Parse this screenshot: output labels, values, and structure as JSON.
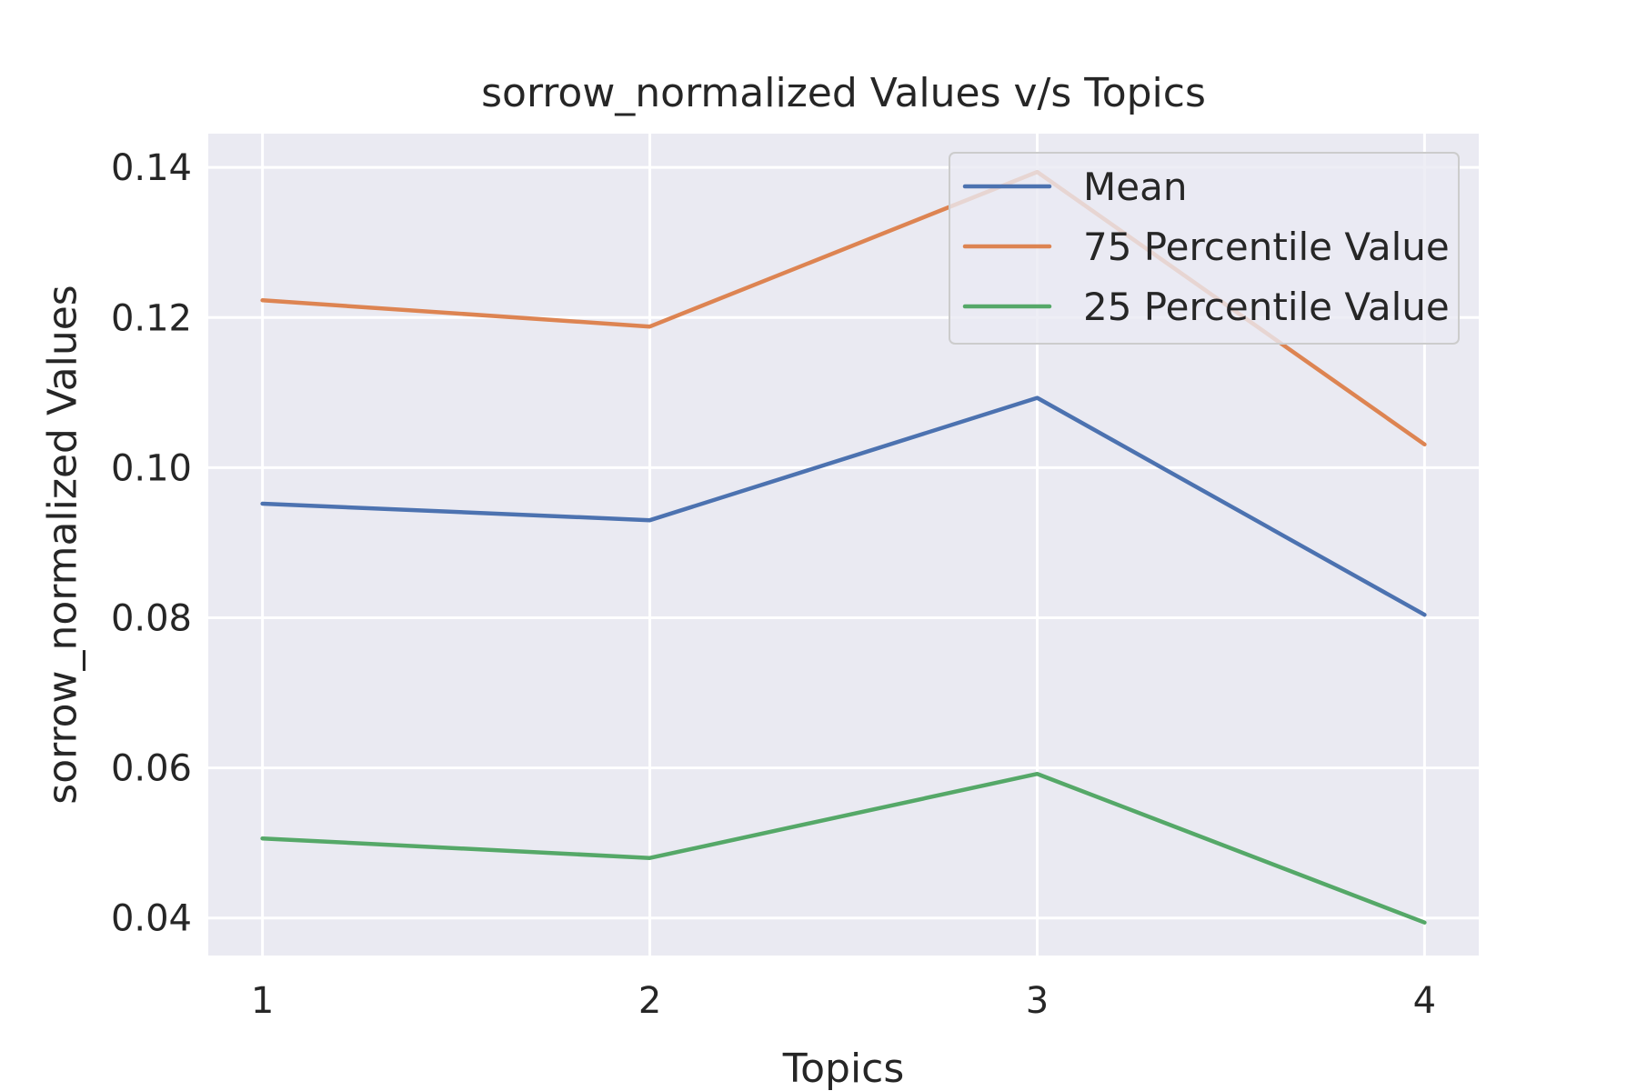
{
  "chart_data": {
    "type": "line",
    "title": "sorrow_normalized Values v/s Topics",
    "xlabel": "Topics",
    "ylabel": "sorrow_normalized Values",
    "x": [
      1,
      2,
      3,
      4
    ],
    "x_tick_labels": [
      "1",
      "2",
      "3",
      "4"
    ],
    "xlim": [
      0.86,
      4.14
    ],
    "ylim": [
      0.035,
      0.1445
    ],
    "y_ticks": [
      0.04,
      0.06,
      0.08,
      0.1,
      0.12,
      0.14
    ],
    "y_tick_labels": [
      "0.04",
      "0.06",
      "0.08",
      "0.10",
      "0.12",
      "0.14"
    ],
    "grid": true,
    "legend_position": "top-right",
    "series": [
      {
        "name": "Mean",
        "color": "#4c72b0",
        "values": [
          0.0952,
          0.093,
          0.1093,
          0.0804
        ]
      },
      {
        "name": "75 Percentile Value",
        "color": "#dd8452",
        "values": [
          0.1223,
          0.1188,
          0.1394,
          0.1031
        ]
      },
      {
        "name": "25 Percentile Value",
        "color": "#55a868",
        "values": [
          0.0506,
          0.048,
          0.0592,
          0.0394
        ]
      }
    ]
  },
  "style": {
    "plot_background": "#eaeaf2",
    "grid_color": "#ffffff",
    "text_color": "#262626"
  }
}
